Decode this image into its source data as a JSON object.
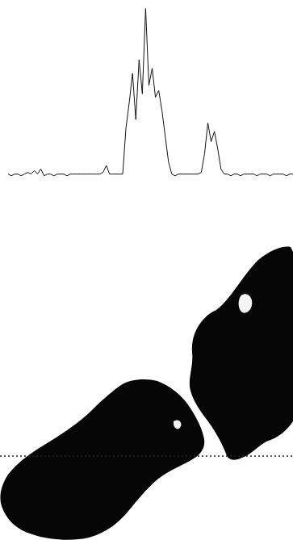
{
  "chart_data": {
    "type": "line",
    "x": [
      0,
      4,
      8,
      12,
      16,
      20,
      24,
      28,
      32,
      36,
      40,
      44,
      48,
      52,
      56,
      60,
      64,
      68,
      72,
      76,
      80,
      84,
      88,
      92,
      96,
      100,
      104,
      108,
      112,
      116,
      120,
      124,
      128,
      132,
      136,
      140,
      144,
      148,
      152,
      156,
      160,
      164,
      168,
      172,
      176,
      180,
      184,
      188,
      192,
      196,
      200,
      204,
      208,
      212,
      216,
      220,
      224,
      228,
      232,
      236,
      240,
      244,
      248,
      252,
      256,
      260,
      264,
      268,
      272,
      276,
      280,
      284,
      288,
      292,
      296,
      300,
      304,
      308,
      312,
      316,
      320,
      324,
      328,
      332,
      336,
      340,
      344,
      348
    ],
    "values": [
      3,
      2,
      3,
      3,
      2,
      3,
      4,
      3,
      5,
      3,
      6,
      2,
      3,
      3,
      2,
      3,
      3,
      3,
      2,
      3,
      3,
      3,
      3,
      3,
      3,
      3,
      3,
      3,
      3,
      4,
      8,
      3,
      3,
      3,
      3,
      3,
      30,
      45,
      62,
      35,
      70,
      50,
      100,
      55,
      65,
      48,
      52,
      40,
      25,
      10,
      3,
      2,
      3,
      3,
      3,
      3,
      3,
      3,
      3,
      4,
      15,
      33,
      22,
      28,
      18,
      6,
      3,
      3,
      2,
      3,
      3,
      2,
      3,
      3,
      3,
      3,
      2,
      3,
      3,
      3,
      2,
      3,
      3,
      3,
      3,
      2,
      3,
      3
    ],
    "color": "#111111",
    "xlim": [
      0,
      348
    ],
    "ylim": [
      0,
      105
    ],
    "grid": false,
    "tick_labels": false
  }
}
